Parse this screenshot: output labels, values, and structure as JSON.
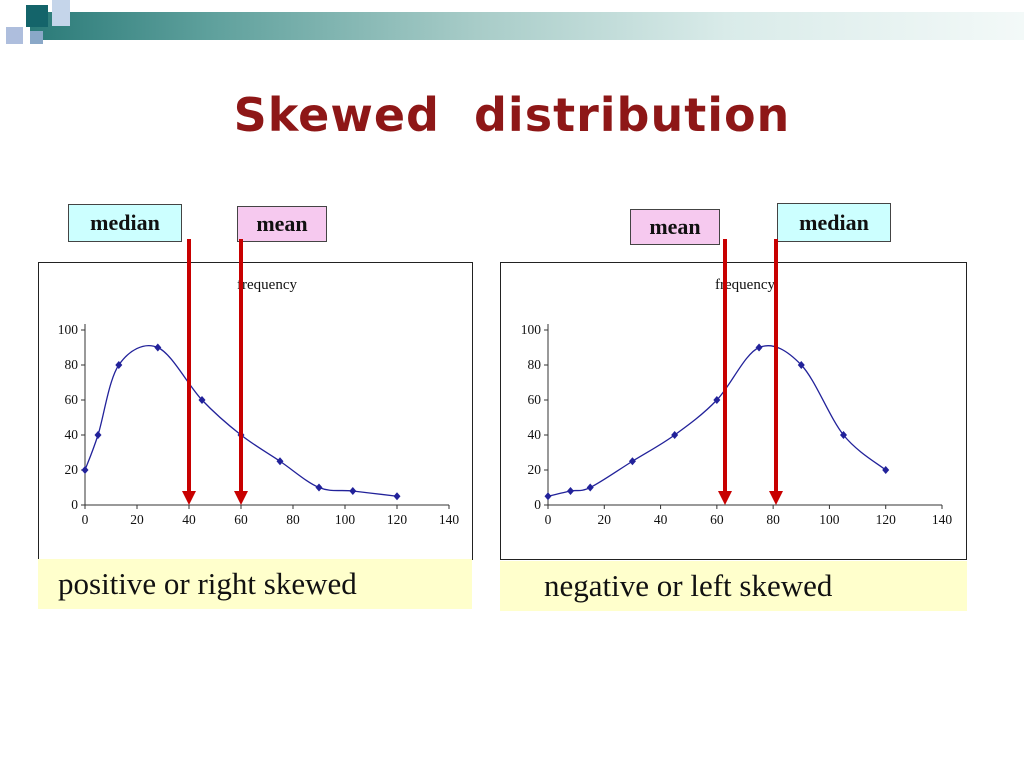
{
  "slide": {
    "title": "Skewed  distribution"
  },
  "colors": {
    "title": "#8e1717",
    "arrow": "#c80000",
    "caption_bg": "#ffffcc",
    "median_box": "#ccffff",
    "mean_box": "#f6c9ef"
  },
  "chart_data": [
    {
      "type": "line",
      "name": "positive-skew",
      "title": "frequency",
      "x": [
        0,
        5,
        13,
        28,
        45,
        60,
        75,
        90,
        103,
        120
      ],
      "y": [
        20,
        40,
        80,
        90,
        60,
        40,
        25,
        10,
        8,
        5
      ],
      "xlim": [
        0,
        140
      ],
      "ylim": [
        0,
        100
      ],
      "x_ticks": [
        0,
        20,
        40,
        60,
        80,
        100,
        120,
        140
      ],
      "y_ticks": [
        0,
        20,
        40,
        60,
        80,
        100
      ],
      "line_color": "#22229a",
      "marker": "diamond",
      "grid": false,
      "annotations": [
        {
          "label": "median",
          "x": 40,
          "box_color": "#ccffff"
        },
        {
          "label": "mean",
          "x": 60,
          "box_color": "#f6c9ef"
        }
      ],
      "caption": "positive or right skewed"
    },
    {
      "type": "line",
      "name": "negative-skew",
      "title": "frequency",
      "x": [
        0,
        8,
        15,
        30,
        45,
        60,
        75,
        90,
        105,
        120
      ],
      "y": [
        5,
        8,
        10,
        25,
        40,
        60,
        90,
        80,
        40,
        20
      ],
      "xlim": [
        0,
        140
      ],
      "ylim": [
        0,
        100
      ],
      "x_ticks": [
        0,
        20,
        40,
        60,
        80,
        100,
        120,
        140
      ],
      "y_ticks": [
        0,
        20,
        40,
        60,
        80,
        100
      ],
      "line_color": "#22229a",
      "marker": "diamond",
      "grid": false,
      "annotations": [
        {
          "label": "mean",
          "x": 63,
          "box_color": "#f6c9ef"
        },
        {
          "label": "median",
          "x": 81,
          "box_color": "#ccffff"
        }
      ],
      "caption": "negative or left skewed"
    }
  ]
}
